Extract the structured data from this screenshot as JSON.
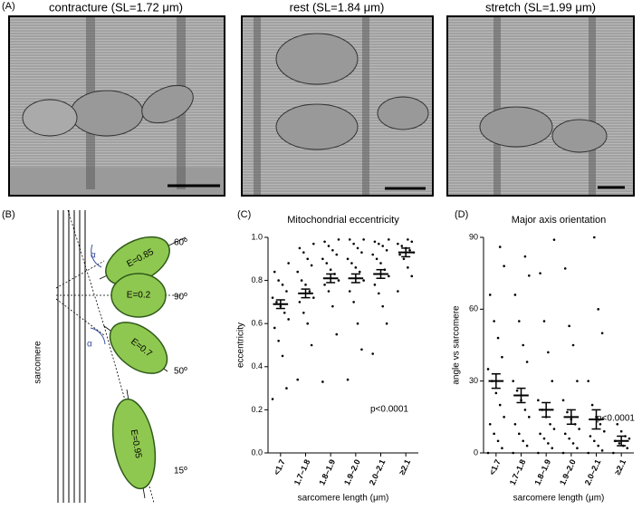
{
  "panel_labels": [
    "(A)",
    "(B)",
    "(C)",
    "(D)"
  ],
  "micrographs": [
    {
      "title": "contracture (SL=1.72 μm)"
    },
    {
      "title": "rest (SL=1.84 μm)"
    },
    {
      "title": "stretch (SL=1.99 μm)"
    }
  ],
  "diagram": {
    "axis_label": "sarcomere",
    "alpha": "α",
    "ellipses": [
      {
        "label": "E=0.85",
        "angle": "60º"
      },
      {
        "label": "E=0.2",
        "angle": "90º"
      },
      {
        "label": "E=0.7",
        "angle": "50º"
      },
      {
        "label": "E=0.95",
        "angle": "15º"
      }
    ]
  },
  "chart_data": [
    {
      "type": "dotplot",
      "title": "Mitochondrial eccentricity",
      "ylabel": "eccentricity",
      "xlabel": "sarcomere length (μm)",
      "annotation": "p<0.0001",
      "categories": [
        "<1.7",
        "1.7–1.8",
        "1.8–1.9",
        "1.9–2.0",
        "2.0–2.1",
        "≥2.1"
      ],
      "values": [
        0.69,
        0.74,
        0.81,
        0.81,
        0.83,
        0.93
      ],
      "errors": [
        0.02,
        0.02,
        0.02,
        0.02,
        0.02,
        0.02
      ],
      "points": [
        [
          0.25,
          0.3,
          0.45,
          0.52,
          0.58,
          0.62,
          0.65,
          0.68,
          0.7,
          0.72,
          0.75,
          0.78,
          0.8,
          0.84,
          0.88
        ],
        [
          0.34,
          0.5,
          0.6,
          0.65,
          0.7,
          0.72,
          0.75,
          0.78,
          0.8,
          0.84,
          0.87,
          0.9,
          0.93,
          0.95,
          0.97
        ],
        [
          0.33,
          0.55,
          0.68,
          0.75,
          0.78,
          0.8,
          0.83,
          0.85,
          0.88,
          0.9,
          0.92,
          0.94,
          0.96,
          0.98,
          0.99
        ],
        [
          0.34,
          0.48,
          0.6,
          0.7,
          0.75,
          0.8,
          0.84,
          0.86,
          0.88,
          0.9,
          0.93,
          0.95,
          0.97,
          0.99,
          0.99
        ],
        [
          0.46,
          0.6,
          0.68,
          0.74,
          0.78,
          0.82,
          0.85,
          0.88,
          0.9,
          0.92,
          0.94,
          0.96,
          0.97,
          0.98,
          0.99
        ],
        [
          0.75,
          0.82,
          0.86,
          0.9,
          0.92,
          0.93,
          0.94,
          0.95,
          0.96,
          0.97,
          0.98,
          0.99
        ]
      ],
      "ylim": [
        0,
        1
      ],
      "yticks": [
        {
          "value": 0,
          "label": "0.0"
        },
        0.2,
        0.4,
        0.6,
        0.8,
        {
          "value": 1,
          "label": "1.0"
        }
      ],
      "color": "#000000"
    },
    {
      "type": "dotplot",
      "title": "Major axis orientation",
      "ylabel": "angle vs sarcomere",
      "xlabel": "sarcomere length (μm)",
      "annotation": "p<0.0001",
      "categories": [
        "<1.7",
        "1.7–1.8",
        "1.8–1.9",
        "1.9–2.0",
        "2.0–2.1",
        "≥2.1"
      ],
      "values": [
        30,
        24,
        18,
        15,
        14,
        5
      ],
      "errors": [
        3,
        3,
        3,
        3,
        4,
        2
      ],
      "points": [
        [
          0,
          2,
          5,
          8,
          12,
          15,
          20,
          25,
          30,
          35,
          40,
          48,
          55,
          66,
          78,
          86
        ],
        [
          0,
          3,
          5,
          8,
          12,
          15,
          18,
          22,
          26,
          30,
          38,
          45,
          55,
          66,
          74,
          82
        ],
        [
          0,
          2,
          4,
          6,
          8,
          10,
          12,
          15,
          18,
          22,
          30,
          42,
          55,
          75,
          89
        ],
        [
          0,
          2,
          4,
          6,
          8,
          10,
          12,
          14,
          17,
          22,
          30,
          45,
          53,
          77
        ],
        [
          0,
          1,
          3,
          5,
          7,
          9,
          12,
          15,
          20,
          30,
          50,
          60,
          90
        ],
        [
          0,
          2,
          3,
          4,
          5,
          6,
          7,
          9,
          12
        ]
      ],
      "ylim": [
        0,
        90
      ],
      "yticks": [
        0,
        30,
        60,
        90
      ],
      "color": "#000000"
    }
  ]
}
